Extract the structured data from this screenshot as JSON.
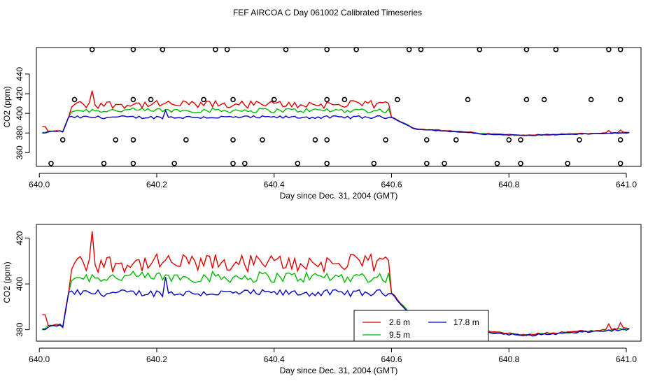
{
  "page_title": "FEF AIRCOA C  Day 061002  Calibrated Timeseries",
  "chart_data": [
    {
      "type": "line+scatter",
      "xlabel": "Day since Dec. 31, 2004 (GMT)",
      "ylabel": "CO2 (ppm)",
      "xlim": [
        639.995,
        641.025
      ],
      "ylim": [
        346,
        467
      ],
      "xticks": [
        "640.0",
        "640.2",
        "640.4",
        "640.6",
        "640.8",
        "641.0"
      ],
      "xtick_values": [
        640.0,
        640.2,
        640.4,
        640.6,
        640.8,
        641.0
      ],
      "yticks": [
        "360",
        "380",
        "400",
        "420",
        "440"
      ],
      "ytick_values": [
        360,
        380,
        400,
        420,
        440
      ],
      "series_line_colors": {
        "2.6 m": "#e00000",
        "9.5 m": "#00bb00",
        "17.8 m": "#0000cc"
      },
      "scatter": {
        "name": "sample markers",
        "marker": "open-circle",
        "points": [
          [
            640.09,
            465
          ],
          [
            640.16,
            465
          ],
          [
            640.21,
            465
          ],
          [
            640.3,
            465
          ],
          [
            640.32,
            465
          ],
          [
            640.42,
            465
          ],
          [
            640.49,
            465
          ],
          [
            640.54,
            465
          ],
          [
            640.63,
            465
          ],
          [
            640.65,
            465
          ],
          [
            640.75,
            465
          ],
          [
            640.83,
            465
          ],
          [
            640.88,
            465
          ],
          [
            640.97,
            465
          ],
          [
            640.99,
            465
          ],
          [
            640.06,
            414
          ],
          [
            640.16,
            414
          ],
          [
            640.19,
            414
          ],
          [
            640.28,
            414
          ],
          [
            640.33,
            414
          ],
          [
            640.4,
            414
          ],
          [
            640.49,
            414
          ],
          [
            640.52,
            414
          ],
          [
            640.61,
            414
          ],
          [
            640.73,
            414
          ],
          [
            640.83,
            414
          ],
          [
            640.86,
            414
          ],
          [
            640.94,
            414
          ],
          [
            640.99,
            414
          ],
          [
            640.04,
            373
          ],
          [
            640.13,
            373
          ],
          [
            640.16,
            373
          ],
          [
            640.25,
            373
          ],
          [
            640.33,
            373
          ],
          [
            640.38,
            373
          ],
          [
            640.47,
            373
          ],
          [
            640.49,
            373
          ],
          [
            640.59,
            373
          ],
          [
            640.66,
            373
          ],
          [
            640.71,
            373
          ],
          [
            640.8,
            373
          ],
          [
            640.82,
            373
          ],
          [
            640.92,
            373
          ],
          [
            640.99,
            373
          ],
          [
            640.02,
            349
          ],
          [
            640.11,
            349
          ],
          [
            640.16,
            349
          ],
          [
            640.23,
            349
          ],
          [
            640.33,
            349
          ],
          [
            640.35,
            349
          ],
          [
            640.44,
            349
          ],
          [
            640.49,
            349
          ],
          [
            640.57,
            349
          ],
          [
            640.66,
            349
          ],
          [
            640.69,
            349
          ],
          [
            640.78,
            349
          ],
          [
            640.82,
            349
          ],
          [
            640.9,
            349
          ],
          [
            640.99,
            349
          ]
        ]
      }
    },
    {
      "type": "line",
      "xlabel": "Day since Dec. 31, 2004 (GMT)",
      "ylabel": "CO2 (ppm)",
      "xlim": [
        639.995,
        641.025
      ],
      "ylim": [
        375,
        426
      ],
      "xticks": [
        "640.0",
        "640.2",
        "640.4",
        "640.6",
        "640.8",
        "641.0"
      ],
      "xtick_values": [
        640.0,
        640.2,
        640.4,
        640.6,
        640.8,
        641.0
      ],
      "yticks": [
        "380",
        "400",
        "420"
      ],
      "ytick_values": [
        380,
        400,
        420
      ],
      "legend": [
        {
          "label": "2.6 m",
          "color": "#e00000"
        },
        {
          "label": "9.5 m",
          "color": "#00bb00"
        },
        {
          "label": "17.8 m",
          "color": "#0000cc"
        }
      ],
      "legend_position": "bottom-center"
    }
  ]
}
